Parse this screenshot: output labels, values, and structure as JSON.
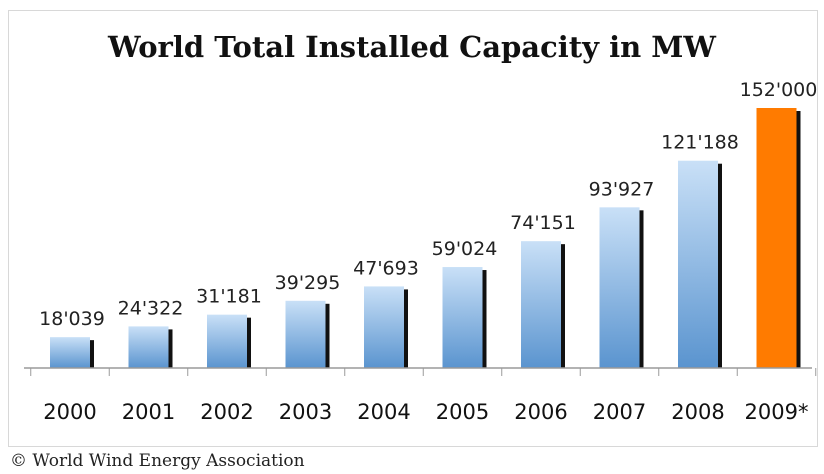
{
  "chart_data": {
    "type": "bar",
    "title": "World Total Installed Capacity in MW",
    "categories": [
      "2000",
      "2001",
      "2002",
      "2003",
      "2004",
      "2005",
      "2006",
      "2007",
      "2008",
      "2009*"
    ],
    "values": [
      18039,
      24322,
      31181,
      39295,
      47693,
      59024,
      74151,
      93927,
      121188,
      152000
    ],
    "value_labels": [
      "18'039",
      "24'322",
      "31'181",
      "39'295",
      "47'693",
      "59'024",
      "74'151",
      "93'927",
      "121'188",
      "152'000"
    ],
    "xlabel": "",
    "ylabel": "",
    "ylim": [
      0,
      160000
    ],
    "grid": false,
    "legend": "none",
    "colors": {
      "bar_light": "#c9e0f7",
      "bar_dark": "#5a94cf",
      "highlight_bar": "#ff7b00",
      "bar_shadow": "#111111",
      "axis": "#9a9a9a"
    }
  },
  "footer": {
    "copyright": "© World Wind Energy Association"
  }
}
